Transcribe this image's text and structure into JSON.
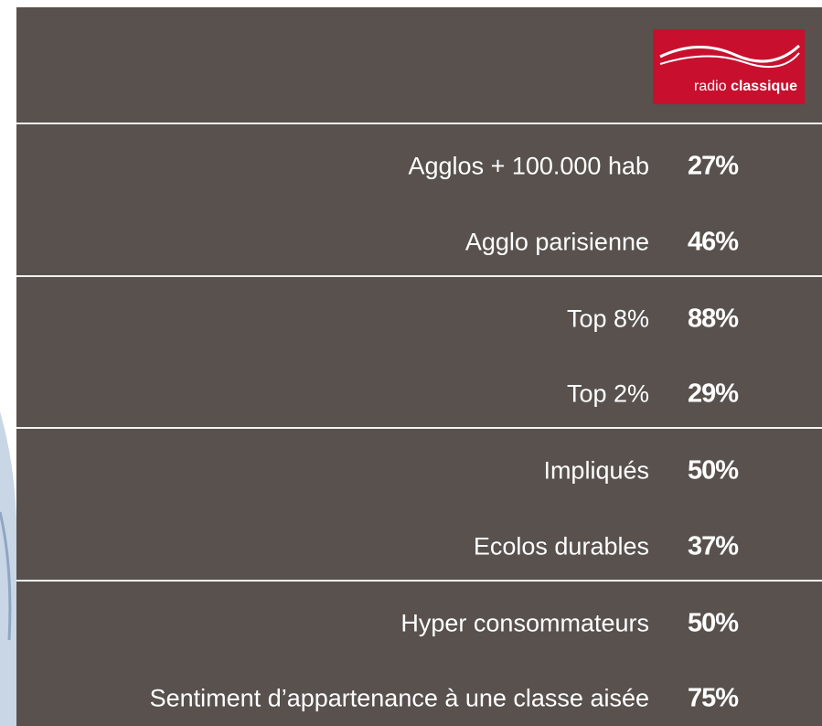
{
  "logo": {
    "light": "radio",
    "bold": "classique"
  },
  "groups": [
    {
      "rows": [
        {
          "label": "Agglos + 100.000 hab",
          "value": "27%"
        },
        {
          "label": "Agglo parisienne",
          "value": "46%"
        }
      ]
    },
    {
      "rows": [
        {
          "label": "Top 8%",
          "value": "88%"
        },
        {
          "label": "Top 2%",
          "value": "29%"
        }
      ]
    },
    {
      "rows": [
        {
          "label": "Impliqués",
          "value": "50%"
        },
        {
          "label": "Ecolos durables",
          "value": "37%"
        }
      ]
    },
    {
      "rows": [
        {
          "label": "Hyper consommateurs",
          "value": "50%"
        },
        {
          "label": "Sentiment d’appartenance à une classe aisée",
          "value": "75%"
        }
      ]
    }
  ]
}
